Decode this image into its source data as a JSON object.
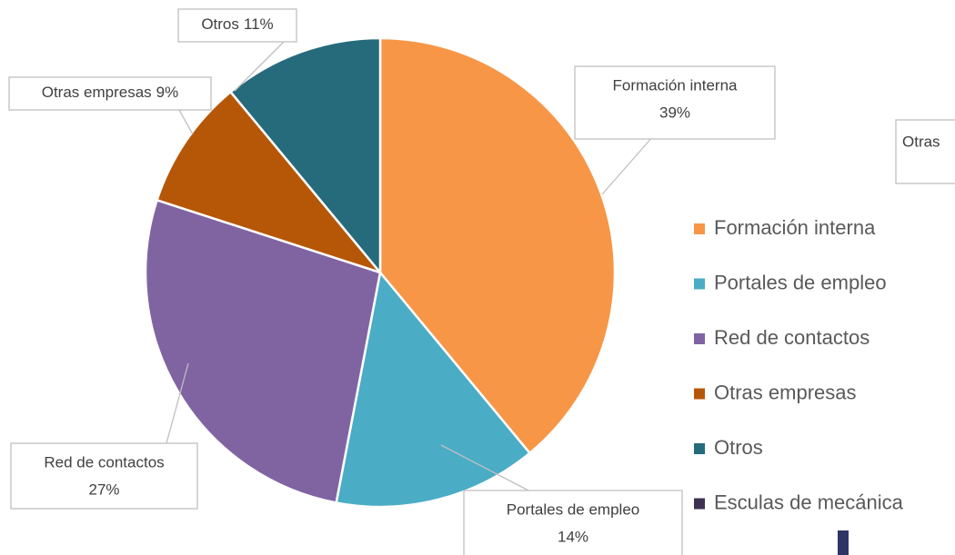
{
  "chart_data": {
    "type": "pie",
    "categories": [
      "Formación interna",
      "Portales de empleo",
      "Red de contactos",
      "Otras empresas",
      "Otros",
      "Esculas de mecánica"
    ],
    "values": [
      39,
      14,
      27,
      9,
      11,
      0
    ],
    "value_labels": [
      "39%",
      "14%",
      "27%",
      "9%",
      "11%",
      null
    ],
    "colors": [
      "#f79646",
      "#4bacc6",
      "#8064a2",
      "#b65708",
      "#256b7c",
      "#3f3151"
    ],
    "legend": "right",
    "annotation": "Otras"
  }
}
